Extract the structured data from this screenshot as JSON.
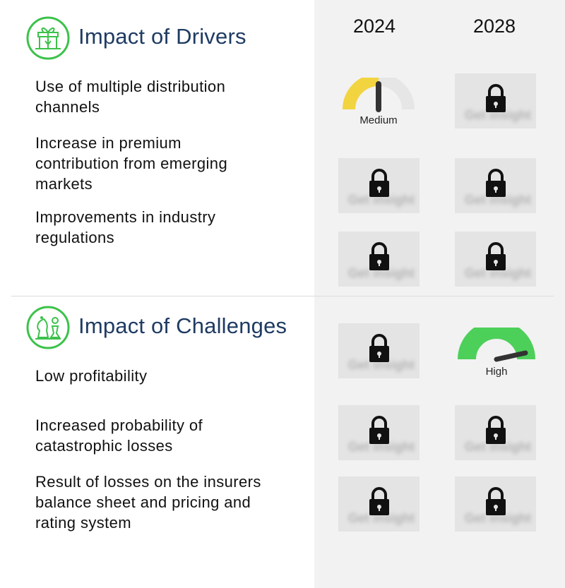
{
  "columns": {
    "year_a": "2024",
    "year_b": "2028"
  },
  "drivers": {
    "title": "Impact of Drivers",
    "icon": "gift-box-icon",
    "items": [
      {
        "label": "Use of multiple distribution channels",
        "impact_2024": "Medium",
        "impact_2028": "locked"
      },
      {
        "label": "Increase in premium contribution from emerging markets",
        "impact_2024": "locked",
        "impact_2028": "locked"
      },
      {
        "label": "Improvements in industry regulations",
        "impact_2024": "locked",
        "impact_2028": "locked"
      }
    ]
  },
  "challenges": {
    "title": "Impact of Challenges",
    "icon": "chess-icon",
    "items": [
      {
        "label": "Low profitability",
        "impact_2024": "locked",
        "impact_2028": "High"
      },
      {
        "label": "Increased probability of catastrophic losses",
        "impact_2024": "locked",
        "impact_2028": "locked"
      },
      {
        "label": "Result of losses on the insurers balance sheet and pricing and rating system",
        "impact_2024": "locked",
        "impact_2028": "locked"
      }
    ]
  },
  "colors": {
    "title": "#1f3b63",
    "icon_green": "#3cc24a",
    "medium_gauge": "#f2d440",
    "high_gauge": "#4cd05a",
    "gauge_track": "#e6e6e6",
    "panel_bg": "#f2f2f2"
  }
}
